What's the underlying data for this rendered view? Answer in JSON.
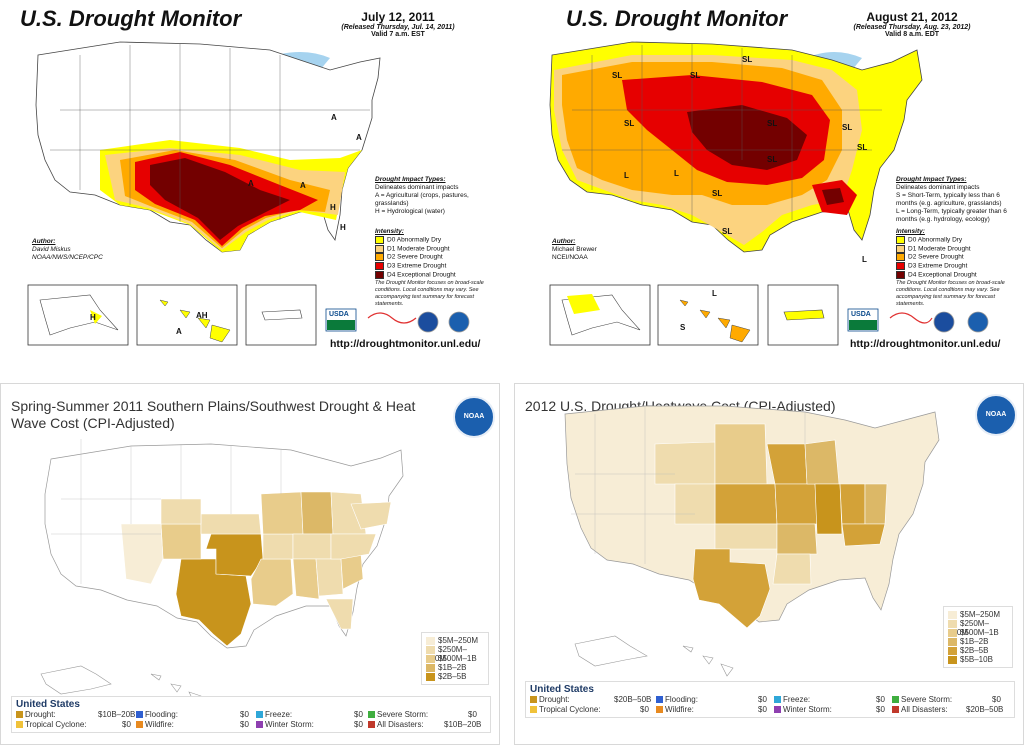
{
  "colors": {
    "d0": "#ffff00",
    "d1": "#fcd37f",
    "d2": "#ffaa00",
    "d3": "#e60000",
    "d4": "#730000",
    "water": "#a6d3ef",
    "cost1": "#f7edd6",
    "cost2": "#efdcae",
    "cost3": "#e8cc8b",
    "cost4": "#dcb867",
    "cost5": "#d3a238",
    "cost6": "#c8941c"
  },
  "map2011": {
    "title": "U.S. Drought Monitor",
    "date": "July 12, 2011",
    "released": "(Released Thursday, Jul. 14, 2011)",
    "valid": "Valid 7 a.m. EST",
    "impact_header": "Drought Impact Types:",
    "impact_items": [
      "Delineates dominant impacts",
      "A = Agricultural (crops, pastures, grasslands)",
      "H = Hydrological (water)"
    ],
    "intensity_header": "Intensity:",
    "intensity_items": [
      "D0 Abnormally Dry",
      "D1 Moderate Drought",
      "D2 Severe Drought",
      "D3 Extreme Drought",
      "D4 Exceptional Drought"
    ],
    "author_header": "Author:",
    "author_name": "David Miskus",
    "author_org": "NOAA/NWS/NCEP/CPC",
    "note": "The Drought Monitor focuses on broad-scale conditions. Local conditions may vary. See accompanying text summary for forecast statements.",
    "url": "http://droughtmonitor.unl.edu/",
    "labels": [
      "A",
      "A",
      "A",
      "H",
      "H",
      "A",
      "H",
      "AH",
      "A"
    ],
    "logo_usda": "USDA"
  },
  "map2012": {
    "title": "U.S. Drought Monitor",
    "date": "August 21, 2012",
    "released": "(Released Thursday, Aug. 23, 2012)",
    "valid": "Valid 8 a.m. EDT",
    "impact_header": "Drought Impact Types:",
    "impact_items": [
      "Delineates dominant impacts",
      "S = Short-Term, typically less than 6 months (e.g. agriculture, grasslands)",
      "L = Long-Term, typically greater than 6 months (e.g. hydrology, ecology)"
    ],
    "intensity_header": "Intensity:",
    "intensity_items": [
      "D0 Abnormally Dry",
      "D1 Moderate Drought",
      "D2 Severe Drought",
      "D3 Extreme Drought",
      "D4 Exceptional Drought"
    ],
    "author_header": "Author:",
    "author_name": "Michael Brewer",
    "author_org": "NCEI/NOAA",
    "note": "The Drought Monitor focuses on broad-scale conditions. Local conditions may vary. See accompanying text summary for forecast statements.",
    "url": "http://droughtmonitor.unl.edu/",
    "labels": [
      "SL",
      "SL",
      "SL",
      "SL",
      "SL",
      "SL",
      "SL",
      "SL",
      "SL",
      "SL",
      "L",
      "L",
      "L",
      "S",
      "S",
      "L"
    ],
    "logo_usda": "USDA"
  },
  "cost2011": {
    "title": "Spring-Summer 2011 Southern Plains/Southwest Drought & Heat Wave Cost (CPI-Adjusted)",
    "logo": "NOAA",
    "legend": [
      "$5M–250M",
      "$250M–500M",
      "$500M–1B",
      "$1B–2B",
      "$2B–5B"
    ],
    "table_title": "United States",
    "rows": [
      [
        {
          "label": "Drought:",
          "value": "$10B–20B",
          "color": "#c8941c"
        },
        {
          "label": "Flooding:",
          "value": "$0",
          "color": "#2f5fd0"
        },
        {
          "label": "Freeze:",
          "value": "$0",
          "color": "#2fa7d8"
        },
        {
          "label": "Severe Storm:",
          "value": "$0",
          "color": "#3fae3f"
        }
      ],
      [
        {
          "label": "Tropical Cyclone:",
          "value": "$0",
          "color": "#f0c23a"
        },
        {
          "label": "Wildfire:",
          "value": "$0",
          "color": "#e88a20"
        },
        {
          "label": "Winter Storm:",
          "value": "$0",
          "color": "#8e3fb0"
        },
        {
          "label": "All Disasters:",
          "value": "$10B–20B",
          "color": "#c0392b"
        }
      ]
    ]
  },
  "cost2012": {
    "title": "2012 U.S. Drought/Heatwave Cost (CPI-Adjusted)",
    "logo": "NOAA",
    "legend": [
      "$5M–250M",
      "$250M–500M",
      "$500M–1B",
      "$1B–2B",
      "$2B–5B",
      "$5B–10B"
    ],
    "table_title": "United States",
    "rows": [
      [
        {
          "label": "Drought:",
          "value": "$20B–50B",
          "color": "#c8941c"
        },
        {
          "label": "Flooding:",
          "value": "$0",
          "color": "#2f5fd0"
        },
        {
          "label": "Freeze:",
          "value": "$0",
          "color": "#2fa7d8"
        },
        {
          "label": "Severe Storm:",
          "value": "$0",
          "color": "#3fae3f"
        }
      ],
      [
        {
          "label": "Tropical Cyclone:",
          "value": "$0",
          "color": "#f0c23a"
        },
        {
          "label": "Wildfire:",
          "value": "$0",
          "color": "#e88a20"
        },
        {
          "label": "Winter Storm:",
          "value": "$0",
          "color": "#8e3fb0"
        },
        {
          "label": "All Disasters:",
          "value": "$20B–50B",
          "color": "#c0392b"
        }
      ]
    ]
  }
}
